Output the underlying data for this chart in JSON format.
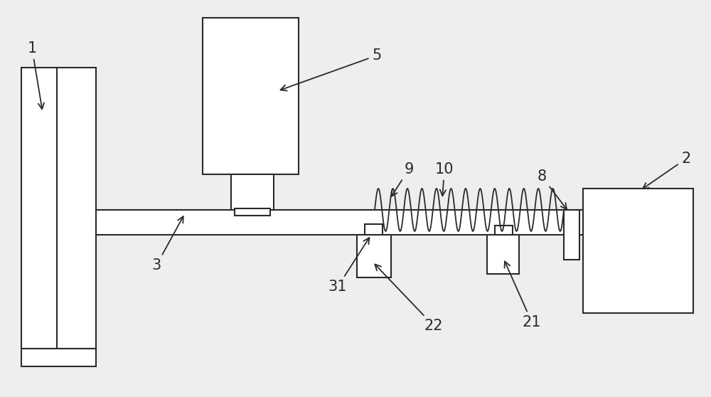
{
  "bg_color": "#eeeeee",
  "line_color": "#2a2a2a",
  "figsize": [
    10.0,
    5.58
  ],
  "dpi": 100,
  "white": "#ffffff",
  "lw": 1.5
}
